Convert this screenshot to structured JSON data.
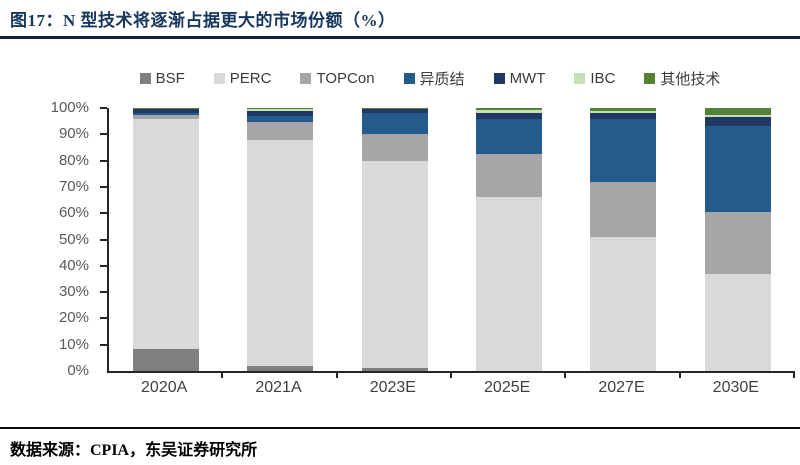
{
  "title": "图17：N 型技术将逐渐占据更大的市场份额（%）",
  "source": "数据来源：CPIA，东吴证券研究所",
  "colors": {
    "title_text": "#17375e",
    "axis_line": "#262626",
    "axis_label": "#595959",
    "rule": "#13203a"
  },
  "chart_data": {
    "type": "bar",
    "stacked": true,
    "grid": false,
    "legend_position": "top",
    "title": "图17：N 型技术将逐渐占据更大的市场份额（%）",
    "xlabel": "",
    "ylabel": "",
    "ylim": [
      0,
      100
    ],
    "yticks": [
      "0%",
      "10%",
      "20%",
      "30%",
      "40%",
      "50%",
      "60%",
      "70%",
      "80%",
      "90%",
      "100%"
    ],
    "categories": [
      "2020A",
      "2021A",
      "2023E",
      "2025E",
      "2027E",
      "2030E"
    ],
    "series": [
      {
        "name": "BSF",
        "color": "#7f7f7f",
        "values": [
          8.5,
          2.0,
          1.2,
          0.0,
          0.0,
          0.0
        ]
      },
      {
        "name": "PERC",
        "color": "#d9d9d9",
        "values": [
          87.5,
          86.0,
          78.8,
          66.0,
          51.0,
          37.0
        ]
      },
      {
        "name": "TOPCon",
        "color": "#a6a6a6",
        "values": [
          1.5,
          6.5,
          10.0,
          16.5,
          21.0,
          23.5
        ]
      },
      {
        "name": "异质结",
        "color": "#255a8c",
        "values": [
          0.8,
          2.5,
          8.0,
          13.5,
          24.0,
          32.8
        ]
      },
      {
        "name": "MWT",
        "color": "#1f3864",
        "values": [
          1.2,
          2.0,
          1.5,
          2.0,
          2.0,
          3.2
        ]
      },
      {
        "name": "IBC",
        "color": "#c5e0b4",
        "values": [
          0.3,
          0.8,
          0.3,
          1.2,
          1.0,
          1.0
        ]
      },
      {
        "name": "其他技术",
        "color": "#538135",
        "values": [
          0.2,
          0.2,
          0.2,
          0.8,
          1.0,
          2.5
        ]
      }
    ]
  }
}
